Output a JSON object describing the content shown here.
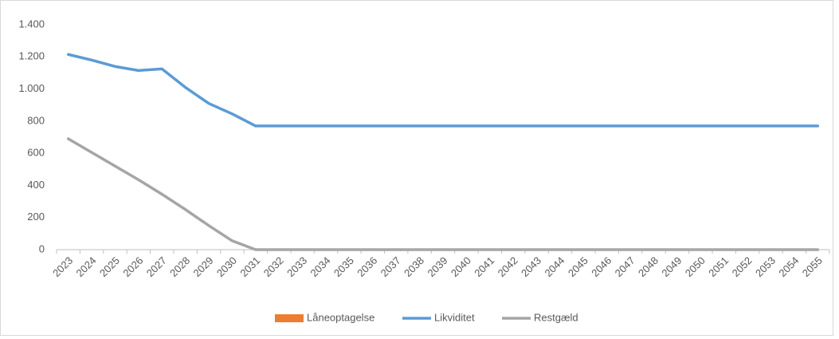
{
  "chart_data": {
    "type": "line",
    "categories": [
      "2023",
      "2024",
      "2025",
      "2026",
      "2027",
      "2028",
      "2029",
      "2030",
      "2031",
      "2032",
      "2033",
      "2034",
      "2035",
      "2036",
      "2037",
      "2038",
      "2039",
      "2040",
      "2041",
      "2042",
      "2043",
      "2044",
      "2045",
      "2046",
      "2047",
      "2048",
      "2049",
      "2050",
      "2051",
      "2052",
      "2053",
      "2054",
      "2055"
    ],
    "series": [
      {
        "name": "Låneoptagelse",
        "type": "bar",
        "color": "#ed7d31",
        "values": [
          0,
          0,
          0,
          0,
          0,
          0,
          0,
          0,
          0,
          0,
          0,
          0,
          0,
          0,
          0,
          0,
          0,
          0,
          0,
          0,
          0,
          0,
          0,
          0,
          0,
          0,
          0,
          0,
          0,
          0,
          0,
          0,
          0
        ]
      },
      {
        "name": "Likviditet",
        "type": "line",
        "color": "#5b9bd5",
        "values": [
          1215,
          1180,
          1140,
          1115,
          1125,
          1010,
          910,
          845,
          770,
          770,
          770,
          770,
          770,
          770,
          770,
          770,
          770,
          770,
          770,
          770,
          770,
          770,
          770,
          770,
          770,
          770,
          770,
          770,
          770,
          770,
          770,
          770,
          770
        ]
      },
      {
        "name": "Restgæld",
        "type": "line",
        "color": "#a5a5a5",
        "values": [
          690,
          605,
          520,
          435,
          345,
          250,
          150,
          55,
          0,
          0,
          0,
          0,
          0,
          0,
          0,
          0,
          0,
          0,
          0,
          0,
          0,
          0,
          0,
          0,
          0,
          0,
          0,
          0,
          0,
          0,
          0,
          0,
          0
        ]
      }
    ],
    "ylim": [
      0,
      1400
    ],
    "yticks": [
      0,
      200,
      400,
      600,
      800,
      {
        "value": 1000,
        "label": "1.000"
      },
      {
        "value": 1200,
        "label": "1.200"
      },
      {
        "value": 1400,
        "label": "1.400"
      }
    ],
    "grid": false,
    "legend": "bottom"
  }
}
